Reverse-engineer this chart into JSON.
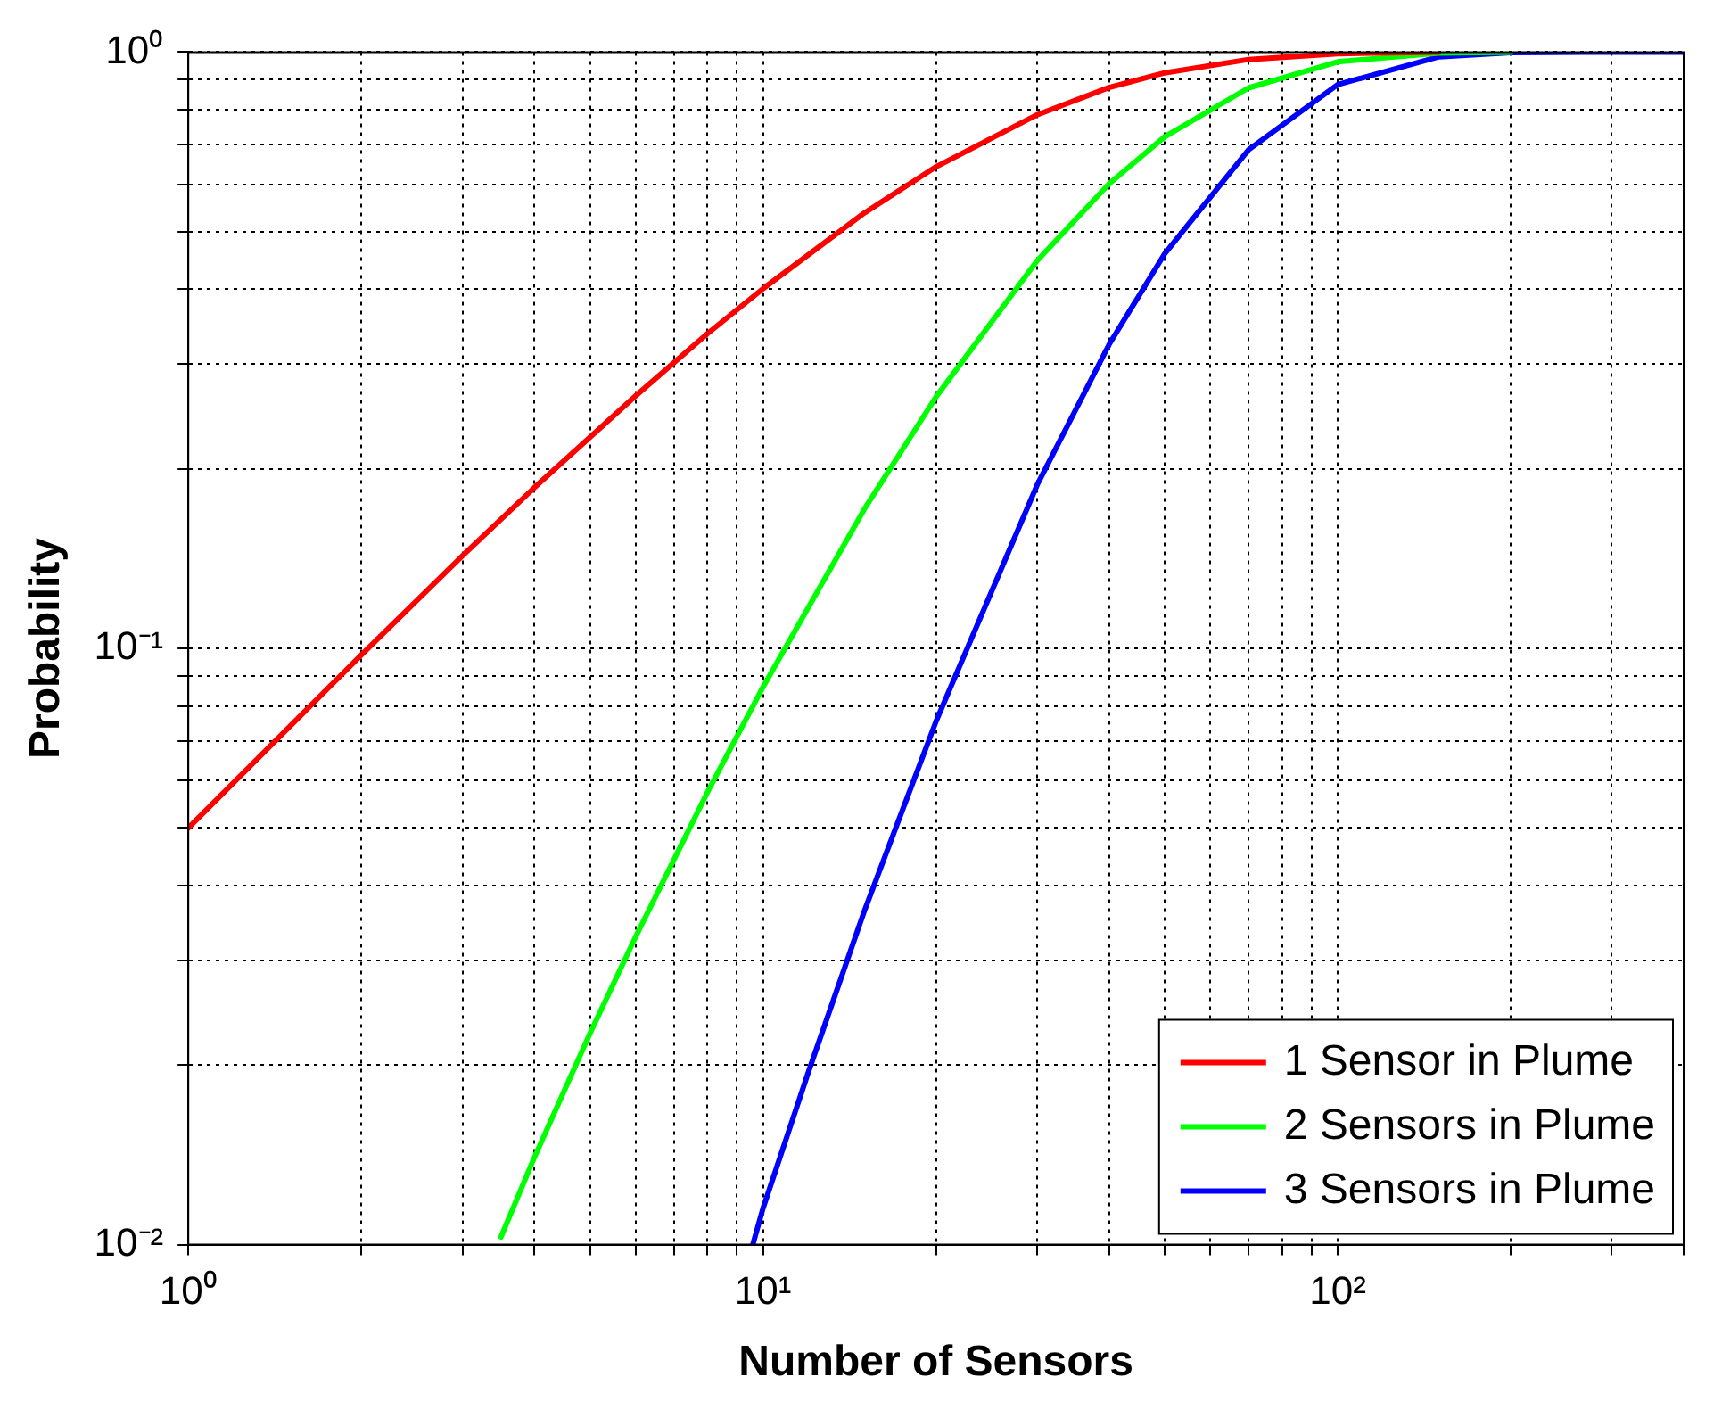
{
  "chart_data": {
    "type": "line",
    "xlabel": "Number of Sensors",
    "ylabel": "Probability",
    "log": "xy",
    "grid": true,
    "legend": "bottom right",
    "marker": "none",
    "line_style": "solid",
    "xlim": [
      1,
      400
    ],
    "ylim": [
      0.01,
      1
    ],
    "xticks": [
      {
        "value": 1,
        "label": "10⁰"
      },
      {
        "value": 2,
        "label": null
      },
      {
        "value": 3,
        "label": null
      },
      {
        "value": 4,
        "label": null
      },
      {
        "value": 5,
        "label": null
      },
      {
        "value": 6,
        "label": null
      },
      {
        "value": 7,
        "label": null
      },
      {
        "value": 8,
        "label": null
      },
      {
        "value": 9,
        "label": null
      },
      {
        "value": 10,
        "label": "10¹"
      },
      {
        "value": 20,
        "label": null
      },
      {
        "value": 30,
        "label": null
      },
      {
        "value": 40,
        "label": null
      },
      {
        "value": 50,
        "label": null
      },
      {
        "value": 60,
        "label": null
      },
      {
        "value": 70,
        "label": null
      },
      {
        "value": 80,
        "label": null
      },
      {
        "value": 90,
        "label": null
      },
      {
        "value": 100,
        "label": "10²"
      },
      {
        "value": 200,
        "label": null
      },
      {
        "value": 300,
        "label": null
      },
      {
        "value": 400,
        "label": null
      }
    ],
    "yticks": [
      {
        "value": 0.01,
        "label": "10⁻²"
      },
      {
        "value": 0.02,
        "label": null
      },
      {
        "value": 0.03,
        "label": null
      },
      {
        "value": 0.04,
        "label": null
      },
      {
        "value": 0.05,
        "label": null
      },
      {
        "value": 0.06,
        "label": null
      },
      {
        "value": 0.07,
        "label": null
      },
      {
        "value": 0.08,
        "label": null
      },
      {
        "value": 0.09,
        "label": null
      },
      {
        "value": 0.1,
        "label": "10⁻¹"
      },
      {
        "value": 0.2,
        "label": null
      },
      {
        "value": 0.3,
        "label": null
      },
      {
        "value": 0.4,
        "label": null
      },
      {
        "value": 0.5,
        "label": null
      },
      {
        "value": 0.6,
        "label": null
      },
      {
        "value": 0.7,
        "label": null
      },
      {
        "value": 0.8,
        "label": null
      },
      {
        "value": 0.9,
        "label": null
      },
      {
        "value": 1,
        "label": "10⁰"
      }
    ],
    "series": [
      {
        "name": "1 Sensor in Plume",
        "color": "#ff0000",
        "x": [
          1,
          2,
          3,
          4,
          5,
          6,
          8,
          10,
          15,
          20,
          30,
          40,
          50,
          70,
          100,
          150
        ],
        "values": [
          0.05,
          0.0975,
          0.143,
          0.186,
          0.226,
          0.265,
          0.337,
          0.401,
          0.537,
          0.642,
          0.785,
          0.872,
          0.923,
          0.972,
          0.994,
          1
        ]
      },
      {
        "name": "2 Sensors in Plume",
        "color": "#00ff00",
        "x": [
          3.5,
          4,
          5,
          6,
          8,
          10,
          15,
          20,
          30,
          40,
          50,
          70,
          100,
          150,
          200
        ],
        "values": [
          0.0103,
          0.014,
          0.0226,
          0.0328,
          0.0573,
          0.0861,
          0.171,
          0.264,
          0.447,
          0.601,
          0.721,
          0.871,
          0.963,
          0.996,
          1
        ]
      },
      {
        "name": "3 Sensors in Plume",
        "color": "#0000ff",
        "x": [
          9.6,
          10,
          12,
          15,
          20,
          30,
          40,
          50,
          70,
          100,
          150,
          200,
          300,
          400
        ],
        "values": [
          0.01,
          0.0115,
          0.0195,
          0.0362,
          0.0754,
          0.188,
          0.323,
          0.459,
          0.686,
          0.882,
          0.982,
          0.998,
          1,
          1
        ]
      }
    ]
  }
}
